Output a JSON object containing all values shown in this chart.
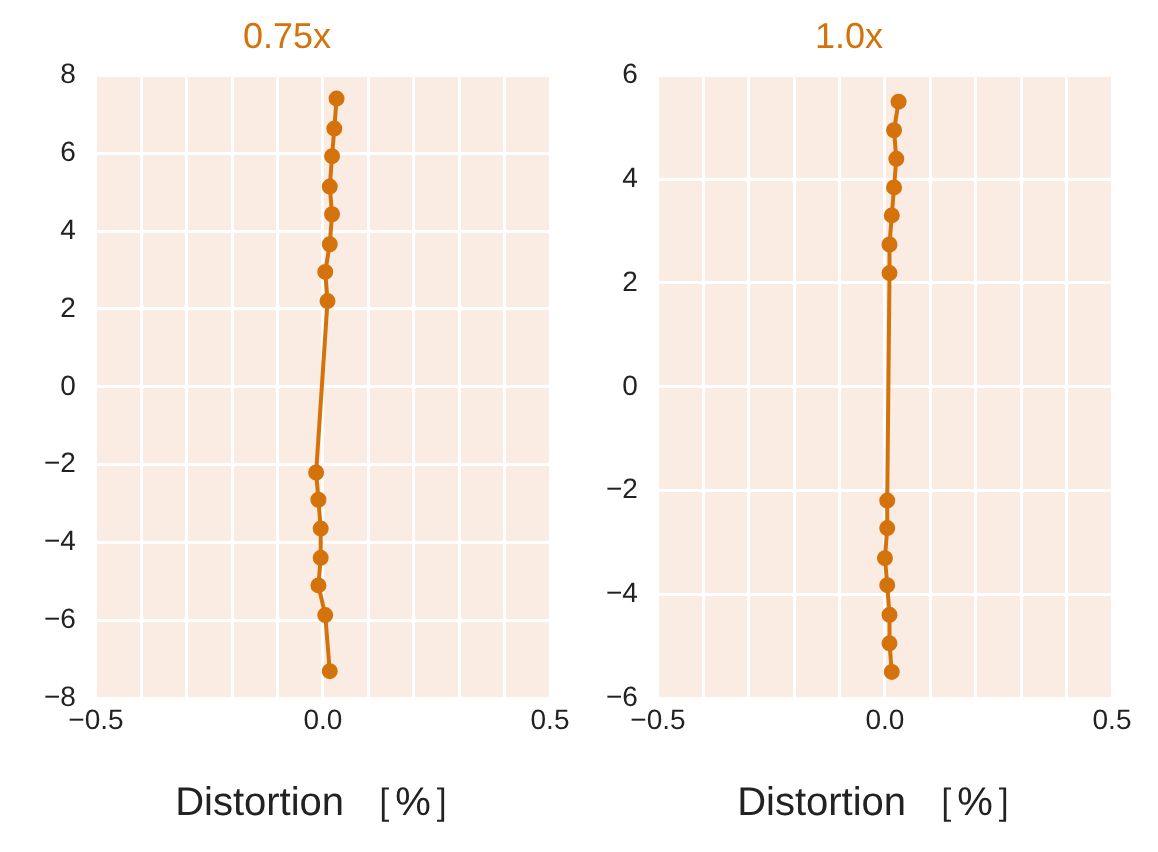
{
  "chart_data": [
    {
      "type": "line",
      "title": "0.75x",
      "xlabel": "Distortion ［%］",
      "marker": "circle",
      "grid": true,
      "series": [
        {
          "color": "#d4720c",
          "x": [
            0.03,
            0.025,
            0.02,
            0.015,
            0.02,
            0.015,
            0.005,
            0.01,
            -0.015,
            -0.01,
            -0.005,
            -0.005,
            -0.01,
            0.005,
            0.015
          ],
          "values": [
            7.4,
            6.63,
            5.92,
            5.14,
            4.43,
            3.66,
            2.95,
            2.2,
            -2.2,
            -2.9,
            -3.64,
            -4.39,
            -5.1,
            -5.86,
            -7.3
          ]
        }
      ],
      "xlim": [
        -0.5,
        0.5
      ],
      "xticks": [
        {
          "value": -0.5,
          "label": "−0.5"
        },
        {
          "value": -0.4,
          "label": null
        },
        {
          "value": -0.3,
          "label": null
        },
        {
          "value": -0.2,
          "label": null
        },
        {
          "value": -0.1,
          "label": null
        },
        {
          "value": 0,
          "label": "0.0"
        },
        {
          "value": 0.1,
          "label": null
        },
        {
          "value": 0.2,
          "label": null
        },
        {
          "value": 0.3,
          "label": null
        },
        {
          "value": 0.4,
          "label": null
        },
        {
          "value": 0.5,
          "label": "0.5"
        }
      ],
      "ylim": [
        -8,
        8
      ],
      "yticks": [
        {
          "value": -8,
          "label": "−8"
        },
        {
          "value": -6,
          "label": "−6"
        },
        {
          "value": -4,
          "label": "−4"
        },
        {
          "value": -2,
          "label": "−2"
        },
        0,
        2,
        4,
        6,
        8
      ]
    },
    {
      "type": "line",
      "title": "1.0x",
      "xlabel": "Distortion ［%］",
      "marker": "circle",
      "grid": true,
      "series": [
        {
          "color": "#d4720c",
          "x": [
            0.03,
            0.02,
            0.025,
            0.02,
            0.015,
            0.01,
            0.01,
            0.005,
            0.005,
            0,
            0.005,
            0.01,
            0.01,
            0.015
          ],
          "values": [
            5.49,
            4.94,
            4.39,
            3.84,
            3.3,
            2.74,
            2.19,
            -2.19,
            -2.72,
            -3.3,
            -3.82,
            -4.39,
            -4.94,
            -5.49
          ]
        }
      ],
      "xlim": [
        -0.5,
        0.5
      ],
      "xticks": [
        {
          "value": -0.5,
          "label": "−0.5"
        },
        {
          "value": -0.4,
          "label": null
        },
        {
          "value": -0.3,
          "label": null
        },
        {
          "value": -0.2,
          "label": null
        },
        {
          "value": -0.1,
          "label": null
        },
        {
          "value": 0,
          "label": "0.0"
        },
        {
          "value": 0.1,
          "label": null
        },
        {
          "value": 0.2,
          "label": null
        },
        {
          "value": 0.3,
          "label": null
        },
        {
          "value": 0.4,
          "label": null
        },
        {
          "value": 0.5,
          "label": "0.5"
        }
      ],
      "ylim": [
        -6,
        6
      ],
      "yticks": [
        {
          "value": -6,
          "label": "−6"
        },
        {
          "value": -4,
          "label": "−4"
        },
        {
          "value": -2,
          "label": "−2"
        },
        0,
        2,
        4,
        6
      ]
    }
  ]
}
